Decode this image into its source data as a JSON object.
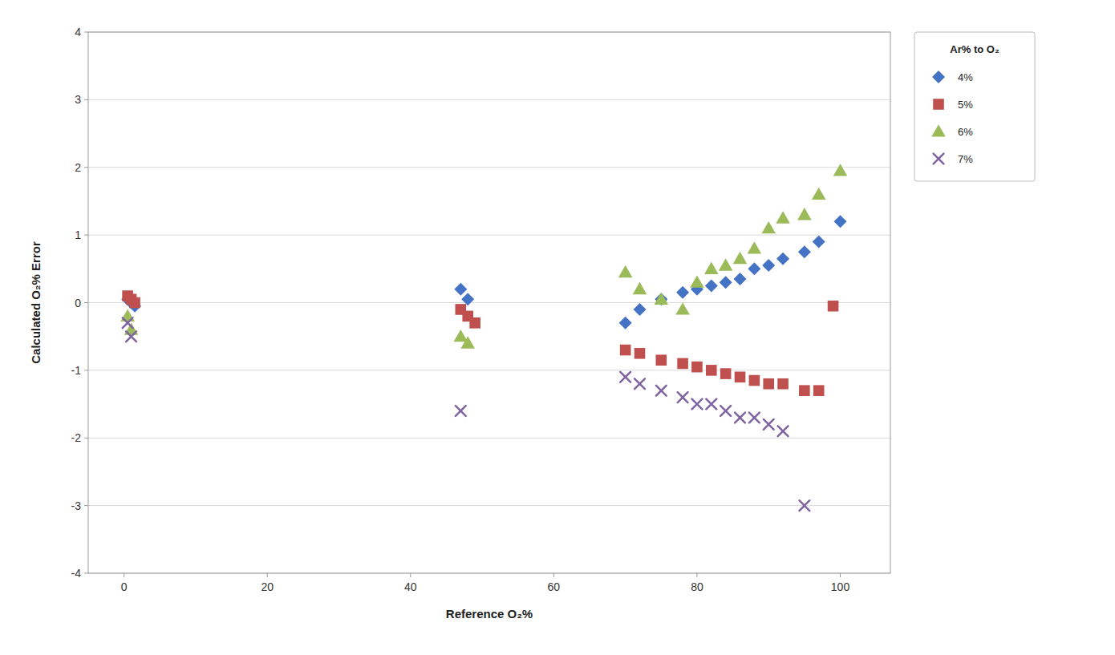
{
  "chart_data": {
    "type": "scatter",
    "xlabel": "Reference O₂%",
    "ylabel": "Calculated O₂% Error",
    "xlim": [
      -5,
      107
    ],
    "ylim": [
      -4,
      4
    ],
    "xticks": [
      0,
      20,
      40,
      60,
      80,
      100
    ],
    "yticks": [
      -4,
      -3,
      -2,
      -1,
      0,
      1,
      2,
      3,
      4
    ],
    "grid": "y",
    "legend": "right",
    "legend_title": "Ar% to O₂",
    "series": [
      {
        "name": "4%",
        "color": "#4472C4",
        "marker": "diamond",
        "x": [
          0.5,
          1.0,
          1.5,
          47,
          48,
          70,
          72,
          75,
          78,
          80,
          82,
          84,
          86,
          88,
          90,
          92,
          95,
          97,
          100
        ],
        "values": [
          0.05,
          0.0,
          -0.05,
          0.2,
          0.05,
          -0.3,
          -0.1,
          0.05,
          0.15,
          0.2,
          0.25,
          0.3,
          0.35,
          0.5,
          0.55,
          0.65,
          0.75,
          0.9,
          1.2
        ]
      },
      {
        "name": "5%",
        "color": "#C0504D",
        "marker": "square",
        "x": [
          0.5,
          1.0,
          1.5,
          47,
          48,
          49,
          70,
          72,
          75,
          78,
          80,
          82,
          84,
          86,
          88,
          90,
          92,
          95,
          97,
          99
        ],
        "values": [
          0.1,
          0.05,
          0.0,
          -0.1,
          -0.2,
          -0.3,
          -0.7,
          -0.75,
          -0.85,
          -0.9,
          -0.95,
          -1.0,
          -1.05,
          -1.1,
          -1.15,
          -1.2,
          -1.2,
          -1.3,
          -1.3,
          -0.05
        ]
      },
      {
        "name": "6%",
        "color": "#9BBB59",
        "marker": "triangle",
        "x": [
          0.5,
          1.0,
          47,
          48,
          70,
          72,
          75,
          78,
          80,
          82,
          84,
          86,
          88,
          90,
          92,
          95,
          97,
          100
        ],
        "values": [
          -0.2,
          -0.4,
          -0.5,
          -0.6,
          0.45,
          0.2,
          0.05,
          -0.1,
          0.3,
          0.5,
          0.55,
          0.65,
          0.8,
          1.1,
          1.25,
          1.3,
          1.6,
          1.95
        ]
      },
      {
        "name": "7%",
        "color": "#8064A2",
        "marker": "x",
        "x": [
          0.5,
          1.0,
          47,
          70,
          72,
          75,
          78,
          80,
          82,
          84,
          86,
          88,
          90,
          92,
          95
        ],
        "values": [
          -0.3,
          -0.5,
          -1.6,
          -1.1,
          -1.2,
          -1.3,
          -1.4,
          -1.5,
          -1.5,
          -1.6,
          -1.7,
          -1.7,
          -1.8,
          -1.9,
          -3.0
        ]
      }
    ]
  }
}
